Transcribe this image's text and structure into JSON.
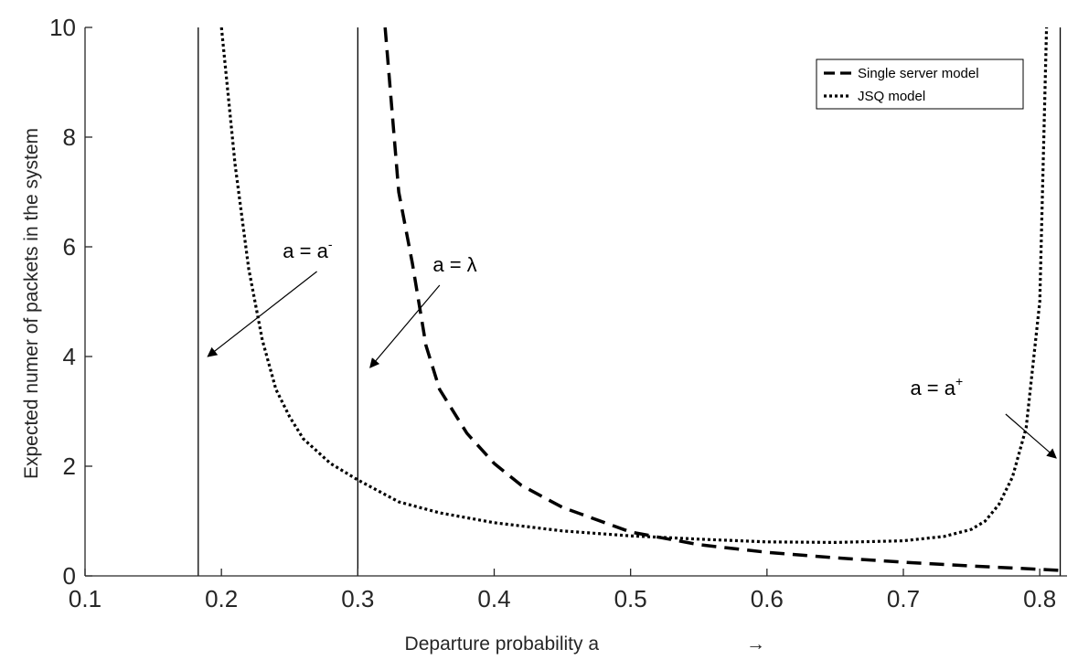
{
  "chart_data": {
    "type": "line",
    "title": "",
    "xlabel": "Departure probability a",
    "xlabel_arrow": "→",
    "ylabel": "Expected numer of packets in the system",
    "xlim": [
      0.1,
      0.82
    ],
    "ylim": [
      0,
      10
    ],
    "xticks": [
      "0.1",
      "0.2",
      "0.3",
      "0.4",
      "0.5",
      "0.6",
      "0.7",
      "0.8"
    ],
    "yticks": [
      "0",
      "2",
      "4",
      "6",
      "8",
      "10"
    ],
    "grid": false,
    "legend_position": "top-right",
    "colors": {
      "lines": "#000000",
      "axes": "#262626"
    },
    "series": [
      {
        "name": "Single server model",
        "style": "dashed",
        "x": [
          0.32,
          0.33,
          0.34,
          0.35,
          0.36,
          0.38,
          0.4,
          0.42,
          0.45,
          0.5,
          0.55,
          0.6,
          0.65,
          0.7,
          0.75,
          0.8,
          0.815
        ],
        "y": [
          10.0,
          7.0,
          5.7,
          4.2,
          3.4,
          2.6,
          2.05,
          1.65,
          1.25,
          0.8,
          0.57,
          0.43,
          0.33,
          0.25,
          0.18,
          0.12,
          0.1
        ]
      },
      {
        "name": "JSQ model",
        "style": "dotted",
        "x": [
          0.2,
          0.21,
          0.22,
          0.23,
          0.24,
          0.25,
          0.26,
          0.28,
          0.3,
          0.33,
          0.36,
          0.4,
          0.45,
          0.5,
          0.55,
          0.6,
          0.65,
          0.7,
          0.73,
          0.75,
          0.76,
          0.77,
          0.78,
          0.79,
          0.8,
          0.805
        ],
        "y": [
          10.0,
          7.5,
          5.6,
          4.3,
          3.4,
          2.9,
          2.5,
          2.05,
          1.75,
          1.35,
          1.15,
          0.97,
          0.82,
          0.73,
          0.67,
          0.62,
          0.61,
          0.64,
          0.72,
          0.85,
          1.0,
          1.3,
          1.8,
          2.7,
          5.0,
          10.0
        ]
      }
    ],
    "vertical_lines": [
      0.183,
      0.3,
      0.815
    ],
    "annotations": [
      {
        "base": "a = a",
        "sup": "-",
        "text_x": 0.245,
        "text_y": 5.8,
        "arrow_from": [
          0.27,
          5.55
        ],
        "arrow_to": [
          0.19,
          4.0
        ]
      },
      {
        "base": "a = λ",
        "sup": "",
        "text_x": 0.355,
        "text_y": 5.55,
        "arrow_from": [
          0.36,
          5.3
        ],
        "arrow_to": [
          0.309,
          3.8
        ]
      },
      {
        "base": "a = a",
        "sup": "+",
        "text_x": 0.705,
        "text_y": 3.3,
        "arrow_from": [
          0.775,
          2.95
        ],
        "arrow_to": [
          0.812,
          2.15
        ]
      }
    ]
  }
}
